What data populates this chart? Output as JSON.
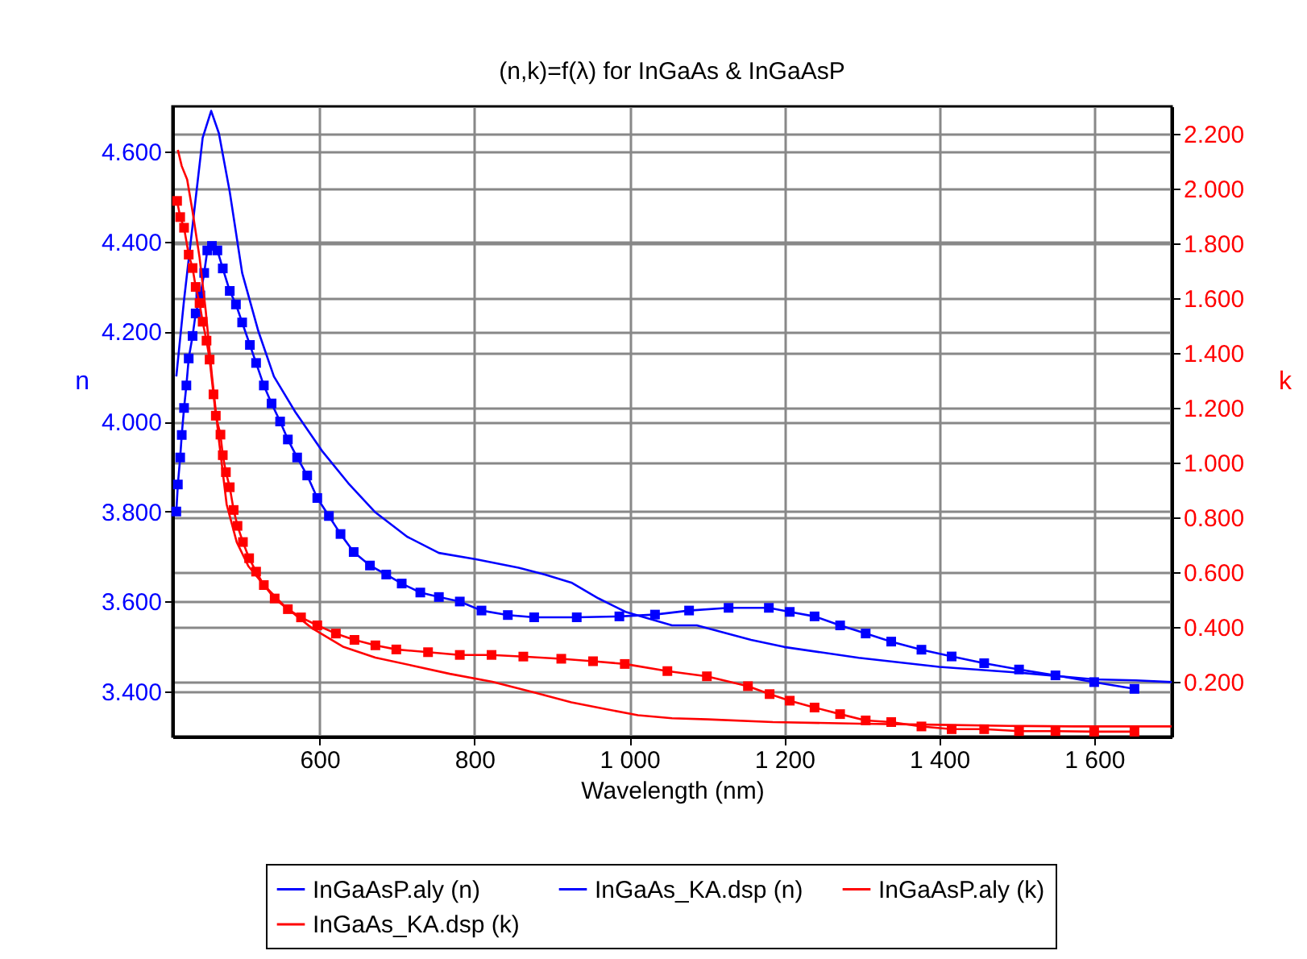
{
  "chart_data": {
    "type": "line",
    "title": "(n,k)=f(λ) for InGaAs & InGaAsP",
    "xlabel": "Wavelength (nm)",
    "ylabel": "n",
    "y2label": "k",
    "xlim": [
      410,
      1700
    ],
    "xticks": [
      600,
      800,
      {
        "value": 1000,
        "label": "1 000"
      },
      {
        "value": 1200,
        "label": "1 200"
      },
      {
        "value": 1400,
        "label": "1 400"
      },
      {
        "value": 1600,
        "label": "1 600"
      }
    ],
    "ylim": [
      3.3,
      4.7
    ],
    "yticks": [
      {
        "value": 3.4,
        "label": "3.400"
      },
      {
        "value": 3.6,
        "label": "3.600"
      },
      {
        "value": 3.8,
        "label": "3.800"
      },
      {
        "value": 4.0,
        "label": "4.000"
      },
      {
        "value": 4.2,
        "label": "4.200"
      },
      {
        "value": 4.4,
        "label": "4.400"
      },
      {
        "value": 4.6,
        "label": "4.600"
      }
    ],
    "y2lim": [
      0,
      2.3
    ],
    "y2ticks": [
      {
        "value": 0.2,
        "label": "0.200"
      },
      {
        "value": 0.4,
        "label": "0.400"
      },
      {
        "value": 0.6,
        "label": "0.600"
      },
      {
        "value": 0.8,
        "label": "0.800"
      },
      {
        "value": 1.0,
        "label": "1.000"
      },
      {
        "value": 1.2,
        "label": "1.200"
      },
      {
        "value": 1.4,
        "label": "1.400"
      },
      {
        "value": 1.6,
        "label": "1.600"
      },
      {
        "value": 1.8,
        "label": "1.800"
      },
      {
        "value": 2.0,
        "label": "2.000"
      },
      {
        "value": 2.2,
        "label": "2.200"
      }
    ],
    "grid": true,
    "legend": "bottom",
    "series": [
      {
        "name": "InGaAsP.aly (n)",
        "color": "#0000ff",
        "marker": "square",
        "x": [
          415,
          417,
          420,
          422,
          425,
          428,
          431,
          436,
          440,
          446,
          451,
          455,
          461,
          468,
          475,
          484,
          492,
          500,
          510,
          518,
          528,
          538,
          549,
          559,
          571,
          584,
          597,
          612,
          627,
          644,
          665,
          686,
          706,
          730,
          754,
          781,
          809,
          843,
          877,
          932,
          987,
          1033,
          1077,
          1128,
          1180,
          1207,
          1239,
          1272,
          1305,
          1338,
          1377,
          1416,
          1458,
          1503,
          1550,
          1600,
          1652
        ],
        "values": [
          3.8,
          3.86,
          3.92,
          3.97,
          4.03,
          4.08,
          4.14,
          4.19,
          4.24,
          4.28,
          4.33,
          4.38,
          4.39,
          4.38,
          4.34,
          4.29,
          4.26,
          4.22,
          4.17,
          4.13,
          4.08,
          4.04,
          4.0,
          3.96,
          3.92,
          3.88,
          3.83,
          3.79,
          3.75,
          3.71,
          3.68,
          3.66,
          3.64,
          3.62,
          3.61,
          3.6,
          3.58,
          3.57,
          3.565,
          3.565,
          3.567,
          3.571,
          3.58,
          3.586,
          3.586,
          3.577,
          3.567,
          3.547,
          3.529,
          3.511,
          3.493,
          3.478,
          3.463,
          3.449,
          3.436,
          3.421,
          3.406
        ]
      },
      {
        "name": "InGaAs_KA.dsp (n)",
        "color": "#0000ff",
        "marker": "none",
        "x": [
          415,
          425,
          439,
          449,
          460,
          470,
          484,
          500,
          521,
          541,
          569,
          603,
          637,
          672,
          713,
          754,
          802,
          857,
          891,
          925,
          960,
          995,
          1055,
          1087,
          1157,
          1200,
          1296,
          1400,
          1504,
          1600,
          1654,
          1700
        ],
        "values": [
          4.1,
          4.27,
          4.48,
          4.63,
          4.69,
          4.64,
          4.51,
          4.33,
          4.2,
          4.1,
          4.02,
          3.935,
          3.863,
          3.798,
          3.744,
          3.708,
          3.694,
          3.675,
          3.66,
          3.642,
          3.607,
          3.577,
          3.547,
          3.547,
          3.515,
          3.499,
          3.475,
          3.455,
          3.442,
          3.427,
          3.425,
          3.421
        ]
      },
      {
        "name": "InGaAsP.aly (k)",
        "color": "#ff0000",
        "marker": "square",
        "axis": "y2",
        "x": [
          416,
          420,
          425,
          431,
          436,
          440,
          445,
          449,
          454,
          458,
          463,
          466,
          472,
          475,
          479,
          484,
          489,
          494,
          501,
          509,
          518,
          528,
          542,
          559,
          576,
          597,
          621,
          645,
          672,
          699,
          740,
          781,
          822,
          863,
          912,
          953,
          994,
          1049,
          1100,
          1153,
          1181,
          1207,
          1239,
          1272,
          1305,
          1338,
          1377,
          1416,
          1458,
          1503,
          1550,
          1600,
          1652
        ],
        "values": [
          1.955,
          1.896,
          1.857,
          1.759,
          1.71,
          1.641,
          1.582,
          1.514,
          1.445,
          1.376,
          1.249,
          1.171,
          1.102,
          1.027,
          0.965,
          0.91,
          0.827,
          0.769,
          0.71,
          0.651,
          0.602,
          0.553,
          0.504,
          0.465,
          0.435,
          0.406,
          0.376,
          0.353,
          0.333,
          0.318,
          0.308,
          0.298,
          0.298,
          0.292,
          0.284,
          0.275,
          0.265,
          0.239,
          0.22,
          0.184,
          0.155,
          0.131,
          0.106,
          0.082,
          0.059,
          0.053,
          0.037,
          0.027,
          0.027,
          0.02,
          0.02,
          0.018,
          0.018
        ]
      },
      {
        "name": "InGaAs_KA.dsp (k)",
        "color": "#ff0000",
        "marker": "none",
        "axis": "y2",
        "x": [
          417,
          422,
          429,
          436,
          445,
          453,
          461,
          470,
          480,
          493,
          508,
          528,
          555,
          590,
          631,
          672,
          720,
          768,
          823,
          877,
          925,
          966,
          1011,
          1055,
          1101,
          1185,
          1296,
          1400,
          1490,
          1574,
          1700
        ],
        "values": [
          2.141,
          2.082,
          2.033,
          1.916,
          1.749,
          1.553,
          1.318,
          1.082,
          0.847,
          0.71,
          0.622,
          0.553,
          0.475,
          0.396,
          0.327,
          0.288,
          0.259,
          0.229,
          0.2,
          0.161,
          0.125,
          0.102,
          0.078,
          0.067,
          0.063,
          0.053,
          0.047,
          0.043,
          0.039,
          0.037,
          0.037
        ]
      }
    ]
  }
}
